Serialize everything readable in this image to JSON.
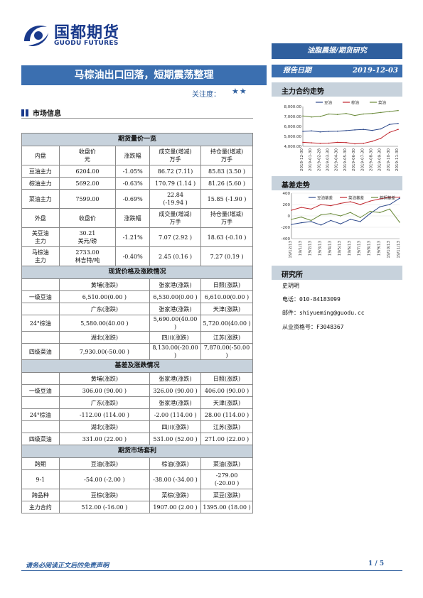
{
  "header": {
    "logo_cn": "国都期货",
    "logo_en": "GUODU FUTURES",
    "tag": "油脂晨报/期货研究",
    "title": "马棕油出口回落，短期震荡整理",
    "attention_label": "关注度：",
    "attention_stars": "★★",
    "report_date_label": "报告日期",
    "report_date": "2019-12-03"
  },
  "market_section_title": "市场信息",
  "table": {
    "sec1": "期货量价一览",
    "h1": [
      "内盘",
      "收盘价\n元",
      "涨跌幅",
      "成交量(增减)\n万手",
      "持仓量(增减)\n万手"
    ],
    "rows1": [
      [
        "豆油主力",
        "6204.00",
        "-1.05%",
        "86.72 (7.11)",
        "85.83 (3.50 )"
      ],
      [
        "棕油主力",
        "5692.00",
        "-0.63%",
        "170.79 (1.14 )",
        "81.26 (5.60 )"
      ],
      [
        "菜油主力",
        "7599.00",
        "-0.69%",
        "22.84\n(-19.94 )",
        "15.85 (-1.90 )"
      ]
    ],
    "h2": [
      "外盘",
      "收盘价",
      "涨跌幅",
      "成交量(增减)\n万手",
      "持仓量(增减)\n万手"
    ],
    "rows2": [
      [
        "美豆油\n主力",
        "30.21\n美元/磅",
        "-1.21%",
        "7.07 (2.92 )",
        "18.63 (-0.10 )"
      ],
      [
        "马棕油\n主力",
        "2733.00\n林吉特/吨",
        "-0.40%",
        "2.45 (0.16 )",
        "7.27 (0.19 )"
      ]
    ],
    "sec2": "现货价格及涨跌情况",
    "spot": [
      [
        "",
        "黄埔(涨跌)",
        "张家港(涨跌)",
        "日照(涨跌)"
      ],
      [
        "一级豆油",
        "6,510.00(0.00 )",
        "6,530.00(0.00 )",
        "6,610.00(0.00 )"
      ],
      [
        "",
        "广东(涨跌)",
        "张家港(涨跌)",
        "天津(涨跌)"
      ],
      [
        "24°棕油",
        "5,580.00(40.00 )",
        "5,690.00(40.00 )",
        "5,720.00(40.00 )"
      ],
      [
        "",
        "湖北(涨跌)",
        "四川(涨跌)",
        "江苏(涨跌)"
      ],
      [
        "四级菜油",
        "7,930.00(-50.00 )",
        "8,130.00(-20.00 )",
        "7,870.00(-50.00 )"
      ]
    ],
    "sec3": "基差及涨跌情况",
    "basis": [
      [
        "",
        "黄埔(涨跌)",
        "张家港(涨跌)",
        "日照(涨跌)"
      ],
      [
        "一级豆油",
        "306.00 (90.00 )",
        "326.00 (90.00 )",
        "406.00 (90.00 )"
      ],
      [
        "",
        "广东(涨跌)",
        "张家港(涨跌)",
        "天津(涨跌)"
      ],
      [
        "24°棕油",
        "-112.00 (114.00 )",
        "-2.00 (114.00 )",
        "28.00 (114.00 )"
      ],
      [
        "",
        "湖北(涨跌)",
        "四川(涨跌)",
        "江苏(涨跌)"
      ],
      [
        "四级菜油",
        "331.00 (22.00 )",
        "531.00 (52.00 )",
        "271.00 (22.00 )"
      ]
    ],
    "sec4": "期货市场套利",
    "arb": [
      [
        "跨期",
        "豆油(涨跌)",
        "棕油(涨跌)",
        "菜油(涨跌)"
      ],
      [
        "9-1",
        "-54.00 (-2.00 )",
        "-38.00 (-34.00 )",
        "-279.00\n(-20.00 )"
      ],
      [
        "跨品种",
        "豆棕(涨跌)",
        "菜棕(涨跌)",
        "菜豆(涨跌)"
      ],
      [
        "主力合约",
        "512.00 (-16.00 )",
        "1907.00 (2.00 )",
        "1395.00 (18.00 )"
      ]
    ]
  },
  "right": {
    "chart1_title": "主力合约走势",
    "chart2_title": "基差走势",
    "research_title": "研究所",
    "analyst": "史玥明",
    "phone": "电话：010-84183099",
    "email": "邮件：shiyueming@guodu.cc",
    "license": "从业资格号：F3048367"
  },
  "chart_data": [
    {
      "type": "line",
      "title": "主力合约走势",
      "series": [
        {
          "name": "豆油",
          "color": "#2e4a8c",
          "values": [
            5500,
            5550,
            5450,
            5500,
            5520,
            5580,
            5650,
            5700,
            5600,
            5750,
            6200,
            6300
          ]
        },
        {
          "name": "棕油",
          "color": "#c0262d",
          "values": [
            4400,
            4350,
            4300,
            4320,
            4400,
            4380,
            4250,
            4300,
            4500,
            4800,
            5400,
            5700
          ]
        },
        {
          "name": "菜油",
          "color": "#6a8a3a",
          "values": [
            7050,
            6950,
            7000,
            7250,
            7200,
            7300,
            7100,
            7250,
            7300,
            7400,
            7500,
            7600
          ]
        }
      ],
      "x": [
        "2018-12-30",
        "2019-01-30",
        "2019-02-28",
        "2019-03-30",
        "2019-04-30",
        "2019-05-30",
        "2019-06-30",
        "2019-07-30",
        "2019-08-30",
        "2019-09-30",
        "2019-10-30",
        "2019-11-30"
      ],
      "ylim": [
        4000,
        8000
      ],
      "yticks": [
        "4,000.00",
        "5,000.00",
        "6,000.00",
        "7,000.00",
        "8,000.00"
      ]
    },
    {
      "type": "line",
      "title": "基差走势",
      "series": [
        {
          "name": "豆油基差",
          "color": "#2e4a8c",
          "values": [
            -150,
            -120,
            -100,
            -160,
            -80,
            -140,
            -60,
            -100,
            40,
            160,
            200,
            310
          ]
        },
        {
          "name": "菜油基差",
          "color": "#c0262d",
          "values": [
            100,
            150,
            120,
            200,
            180,
            220,
            250,
            200,
            260,
            300,
            330,
            330
          ]
        },
        {
          "name": "棕榈基差",
          "color": "#6a8a3a",
          "values": [
            -60,
            -20,
            -80,
            20,
            40,
            0,
            60,
            -30,
            80,
            60,
            120,
            -110
          ]
        }
      ],
      "x": [
        "19/12/13",
        "19/1/13",
        "19/2/13",
        "19/3/13",
        "19/4/13",
        "19/5/13",
        "19/6/13",
        "19/7/13",
        "19/8/13",
        "19/9/13",
        "19/10/13",
        "19/11/13"
      ],
      "ylim": [
        -400,
        400
      ],
      "yticks": [
        "-400",
        "-200",
        "0",
        "200",
        "400"
      ]
    }
  ],
  "footer": {
    "disclaimer": "请务必阅读正文后的免责声明",
    "page": "1 / 5"
  }
}
